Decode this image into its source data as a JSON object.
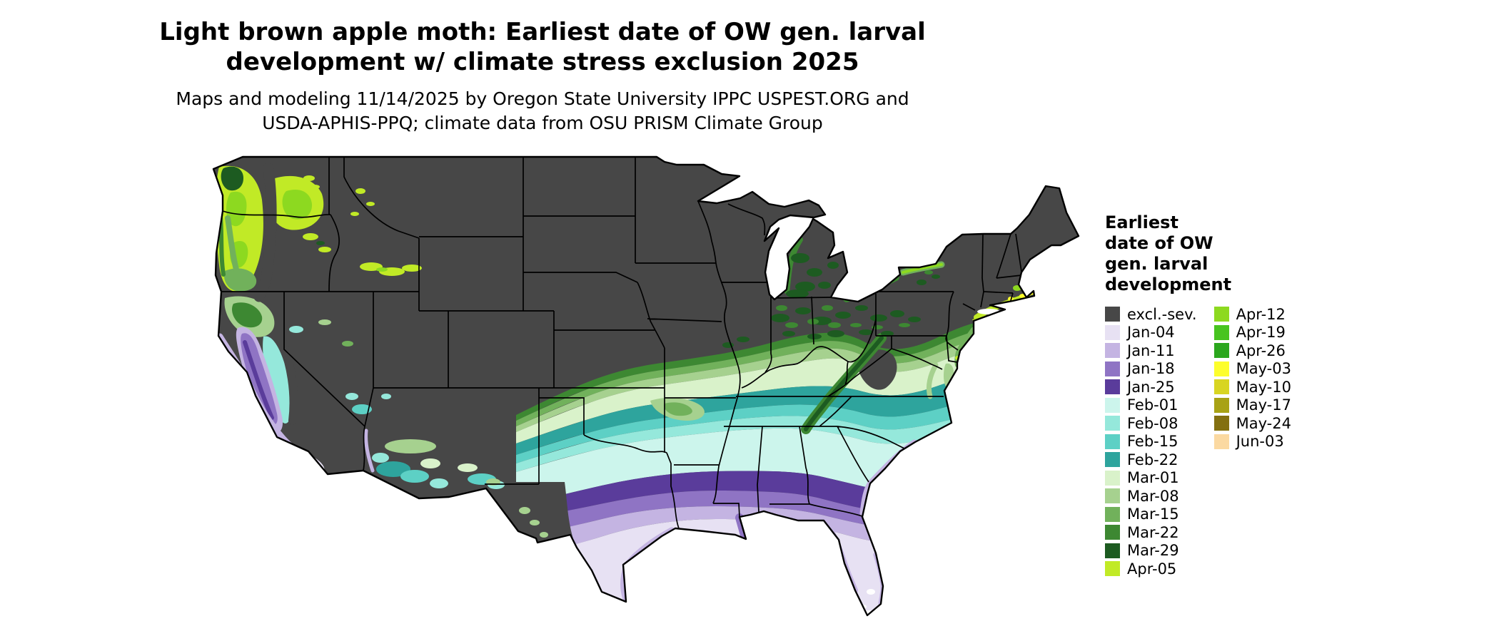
{
  "title": {
    "line1": "Light brown apple moth: Earliest date of OW gen. larval",
    "line2": "development w/ climate stress exclusion 2025"
  },
  "subtitle": {
    "line1": "Maps and modeling 11/14/2025 by Oregon State University IPPC USPEST.ORG and",
    "line2": "USDA-APHIS-PPQ; climate data from OSU PRISM Climate Group"
  },
  "legend": {
    "title_lines": [
      "Earliest",
      "date of OW",
      "gen. larval",
      "development"
    ],
    "columns": [
      [
        {
          "label": "excl.-sev.",
          "color": "#474747"
        },
        {
          "label": "Jan-04",
          "color": "#e7e1f3"
        },
        {
          "label": "Jan-11",
          "color": "#c4b4e2"
        },
        {
          "label": "Jan-18",
          "color": "#8f74c4"
        },
        {
          "label": "Jan-25",
          "color": "#5a3c9b"
        },
        {
          "label": "Feb-01",
          "color": "#ccf5ec"
        },
        {
          "label": "Feb-08",
          "color": "#95e8db"
        },
        {
          "label": "Feb-15",
          "color": "#5dd0c5"
        },
        {
          "label": "Feb-22",
          "color": "#2ea49d"
        },
        {
          "label": "Mar-01",
          "color": "#d9f2ca"
        },
        {
          "label": "Mar-08",
          "color": "#a6d18f"
        },
        {
          "label": "Mar-15",
          "color": "#71b15b"
        },
        {
          "label": "Mar-22",
          "color": "#3d8832"
        },
        {
          "label": "Mar-29",
          "color": "#1d5b21"
        },
        {
          "label": "Apr-05",
          "color": "#c1ea26"
        }
      ],
      [
        {
          "label": "Apr-12",
          "color": "#8dd920"
        },
        {
          "label": "Apr-19",
          "color": "#48c41f"
        },
        {
          "label": "Apr-26",
          "color": "#2ba71d"
        },
        {
          "label": "May-03",
          "color": "#fdfe2c"
        },
        {
          "label": "May-10",
          "color": "#d8d522"
        },
        {
          "label": "May-17",
          "color": "#a8a215"
        },
        {
          "label": "May-24",
          "color": "#837010"
        },
        {
          "label": "Jun-03",
          "color": "#fbd9a1"
        }
      ]
    ]
  },
  "map": {
    "background": "#ffffff",
    "excluded_color": "#474747",
    "state_border_color": "#000000"
  }
}
